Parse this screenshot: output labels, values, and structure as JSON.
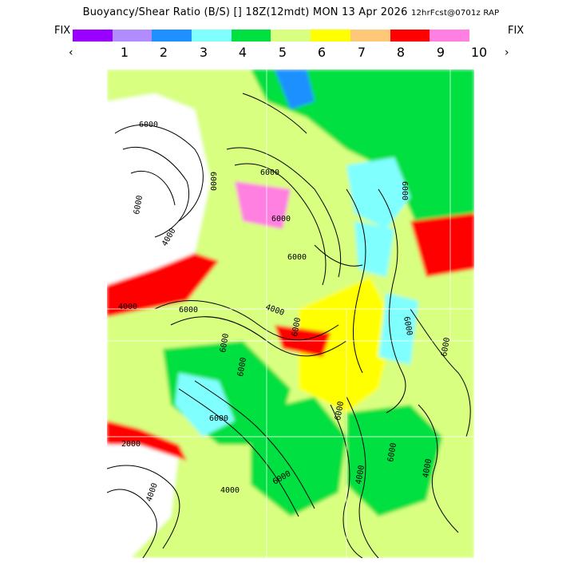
{
  "header": {
    "field": "Buoyancy/Shear Ratio (B/S)",
    "mark": "[]",
    "valid": "18Z(12mdt) MON 13 Apr 2026",
    "forecast": "12hrFcst@0701z RAP"
  },
  "legend": {
    "fix_left": "FIX",
    "fix_right": "FIX",
    "prev_arrow": "‹",
    "next_arrow": "›",
    "ticks": [
      "1",
      "2",
      "3",
      "4",
      "5",
      "6",
      "7",
      "8",
      "9",
      "10"
    ],
    "colors": [
      "#9900ff",
      "#b08cff",
      "#1e90ff",
      "#80ffff",
      "#00e040",
      "#d8ff80",
      "#ffff00",
      "#ffc878",
      "#ff0000",
      "#ff80e0"
    ]
  },
  "map": {
    "contour_labels": [
      "6000",
      "6000",
      "6000",
      "6000",
      "6000",
      "6000",
      "6000",
      "4000",
      "4000",
      "6000",
      "6000",
      "2000",
      "4000",
      "4000",
      "6000",
      "6000",
      "6000",
      "4000",
      "6000",
      "6000",
      "6000",
      "4000",
      "6000",
      "6000",
      "4000"
    ]
  }
}
